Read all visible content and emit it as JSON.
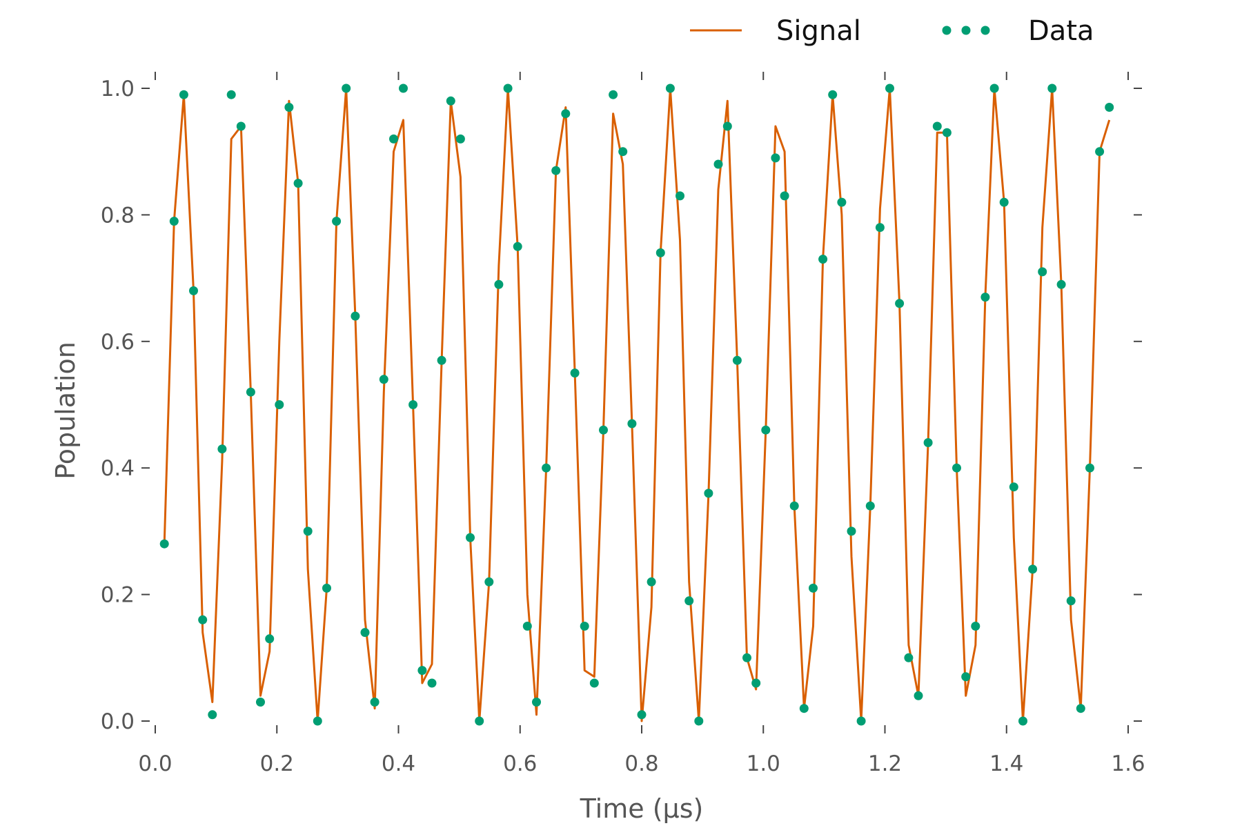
{
  "chart_data": {
    "type": "line",
    "xlabel": "Time (μs)",
    "ylabel": "Population",
    "xlim": [
      0.0,
      1.6
    ],
    "ylim": [
      0.0,
      1.0
    ],
    "xticks": [
      "0.0",
      "0.2",
      "0.4",
      "0.6",
      "0.8",
      "1.0",
      "1.2",
      "1.4",
      "1.6"
    ],
    "yticks": [
      "0.0",
      "0.2",
      "0.4",
      "0.6",
      "0.8",
      "1.0"
    ],
    "grid": false,
    "legend_position": "top-right",
    "colors": {
      "signal": "#d95f02",
      "data": "#009e73"
    },
    "series": [
      {
        "name": "Signal",
        "style": "line",
        "x": [
          0.015,
          0.031,
          0.047,
          0.063,
          0.078,
          0.094,
          0.11,
          0.125,
          0.141,
          0.157,
          0.173,
          0.188,
          0.204,
          0.22,
          0.235,
          0.251,
          0.267,
          0.282,
          0.298,
          0.314,
          0.329,
          0.345,
          0.361,
          0.376,
          0.392,
          0.408,
          0.424,
          0.439,
          0.455,
          0.471,
          0.486,
          0.502,
          0.518,
          0.533,
          0.549,
          0.565,
          0.58,
          0.596,
          0.612,
          0.627,
          0.643,
          0.659,
          0.675,
          0.69,
          0.706,
          0.722,
          0.737,
          0.753,
          0.769,
          0.784,
          0.8,
          0.816,
          0.831,
          0.847,
          0.863,
          0.878,
          0.894,
          0.91,
          0.926,
          0.941,
          0.957,
          0.973,
          0.988,
          1.004,
          1.02,
          1.035,
          1.051,
          1.067,
          1.082,
          1.098,
          1.114,
          1.129,
          1.145,
          1.161,
          1.176,
          1.192,
          1.208,
          1.224,
          1.239,
          1.255,
          1.271,
          1.286,
          1.302,
          1.318,
          1.333,
          1.349,
          1.365,
          1.38,
          1.396,
          1.412,
          1.427,
          1.443,
          1.459,
          1.475,
          1.49,
          1.506,
          1.522,
          1.537,
          1.553,
          1.569
        ],
        "y": [
          0.28,
          0.79,
          0.99,
          0.68,
          0.14,
          0.03,
          0.41,
          0.92,
          0.94,
          0.52,
          0.04,
          0.11,
          0.6,
          0.98,
          0.85,
          0.24,
          0.0,
          0.21,
          0.79,
          1.0,
          0.64,
          0.16,
          0.02,
          0.52,
          0.9,
          0.95,
          0.5,
          0.06,
          0.09,
          0.57,
          0.98,
          0.86,
          0.29,
          0.0,
          0.22,
          0.72,
          1.0,
          0.75,
          0.2,
          0.01,
          0.4,
          0.87,
          0.97,
          0.55,
          0.08,
          0.07,
          0.46,
          0.96,
          0.88,
          0.47,
          0.0,
          0.18,
          0.74,
          1.0,
          0.76,
          0.22,
          0.0,
          0.36,
          0.84,
          0.98,
          0.57,
          0.1,
          0.05,
          0.46,
          0.94,
          0.9,
          0.34,
          0.02,
          0.15,
          0.73,
          0.99,
          0.8,
          0.26,
          0.0,
          0.34,
          0.81,
          1.0,
          0.66,
          0.12,
          0.04,
          0.44,
          0.93,
          0.93,
          0.4,
          0.04,
          0.12,
          0.67,
          1.0,
          0.82,
          0.29,
          0.0,
          0.24,
          0.78,
          1.0,
          0.69,
          0.16,
          0.02,
          0.4,
          0.9,
          0.95
        ]
      },
      {
        "name": "Data",
        "style": "markers",
        "x": [
          0.015,
          0.031,
          0.047,
          0.063,
          0.078,
          0.094,
          0.11,
          0.125,
          0.141,
          0.157,
          0.173,
          0.188,
          0.204,
          0.22,
          0.235,
          0.251,
          0.267,
          0.282,
          0.298,
          0.314,
          0.329,
          0.345,
          0.361,
          0.376,
          0.392,
          0.408,
          0.424,
          0.439,
          0.455,
          0.471,
          0.486,
          0.502,
          0.518,
          0.533,
          0.549,
          0.565,
          0.58,
          0.596,
          0.612,
          0.627,
          0.643,
          0.659,
          0.675,
          0.69,
          0.706,
          0.722,
          0.737,
          0.753,
          0.769,
          0.784,
          0.8,
          0.816,
          0.831,
          0.847,
          0.863,
          0.878,
          0.894,
          0.91,
          0.926,
          0.941,
          0.957,
          0.973,
          0.988,
          1.004,
          1.02,
          1.035,
          1.051,
          1.067,
          1.082,
          1.098,
          1.114,
          1.129,
          1.145,
          1.161,
          1.176,
          1.192,
          1.208,
          1.224,
          1.239,
          1.255,
          1.271,
          1.286,
          1.302,
          1.318,
          1.333,
          1.349,
          1.365,
          1.38,
          1.396,
          1.412,
          1.427,
          1.443,
          1.459,
          1.475,
          1.49,
          1.506,
          1.522,
          1.537,
          1.553,
          1.569
        ],
        "y": [
          0.28,
          0.79,
          0.99,
          0.68,
          0.16,
          0.01,
          0.43,
          0.99,
          0.94,
          0.52,
          0.03,
          0.13,
          0.5,
          0.97,
          0.85,
          0.3,
          0.0,
          0.21,
          0.79,
          1.0,
          0.64,
          0.14,
          0.03,
          0.54,
          0.92,
          1.0,
          0.5,
          0.08,
          0.06,
          0.57,
          0.98,
          0.92,
          0.29,
          0.0,
          0.22,
          0.69,
          1.0,
          0.75,
          0.15,
          0.03,
          0.4,
          0.87,
          0.96,
          0.55,
          0.15,
          0.06,
          0.46,
          0.99,
          0.9,
          0.47,
          0.01,
          0.22,
          0.74,
          1.0,
          0.83,
          0.19,
          0.0,
          0.36,
          0.88,
          0.94,
          0.57,
          0.1,
          0.06,
          0.46,
          0.89,
          0.83,
          0.34,
          0.02,
          0.21,
          0.73,
          0.99,
          0.82,
          0.3,
          0.0,
          0.34,
          0.78,
          1.0,
          0.66,
          0.1,
          0.04,
          0.44,
          0.94,
          0.93,
          0.4,
          0.07,
          0.15,
          0.67,
          1.0,
          0.82,
          0.37,
          0.0,
          0.24,
          0.71,
          1.0,
          0.69,
          0.19,
          0.02,
          0.4,
          0.9,
          0.97
        ]
      }
    ]
  }
}
